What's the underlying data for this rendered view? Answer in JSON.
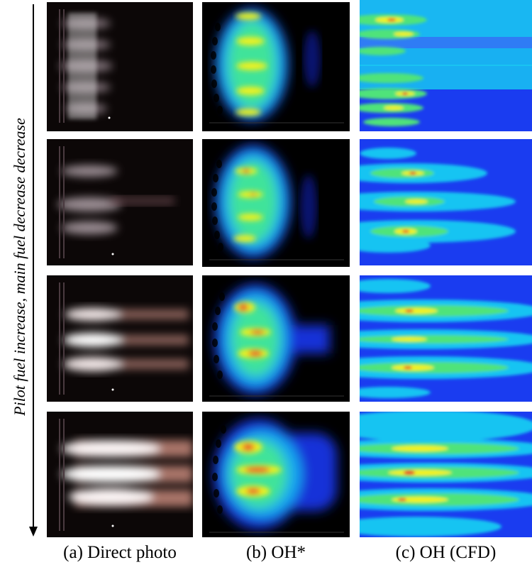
{
  "side_label": "Pilot fuel increase, main fuel decrease decrease",
  "columns": [
    {
      "label": "(a) Direct photo"
    },
    {
      "label": "(b) OH*"
    },
    {
      "label": "(c) OH (CFD)"
    }
  ],
  "colors": {
    "cfd_background": "#1a3cf0",
    "cfd_cyan": "#19c4f2",
    "cfd_green": "#4fe37a",
    "cfd_yellow": "#f2f21a",
    "cfd_red": "#e83a2a",
    "photo_background": "#0c0707",
    "oh_background": "#000000"
  }
}
